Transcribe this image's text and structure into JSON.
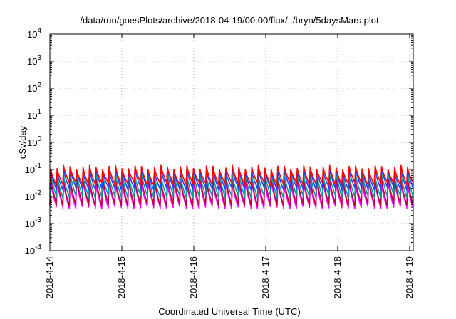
{
  "chart_data": {
    "type": "line",
    "title": "/data/run/goesPlots/archive/2018-04-19/00:00/flux/../bryn/5daysMars.plot",
    "xlabel": "Coordinated Universal Time (UTC)",
    "ylabel": "cSv/day",
    "yscale": "log",
    "ylim": [
      0.0001,
      10000
    ],
    "xlim": [
      0,
      5.05
    ],
    "grid": true,
    "x_ticks": [
      {
        "x": 0,
        "label": "2018-4-14"
      },
      {
        "x": 1,
        "label": "2018-4-15"
      },
      {
        "x": 2,
        "label": "2018-4-16"
      },
      {
        "x": 3,
        "label": "2018-4-17"
      },
      {
        "x": 4,
        "label": "2018-4-18"
      },
      {
        "x": 5,
        "label": "2018-4-19"
      }
    ],
    "y_ticks": [
      {
        "value": 0.0001,
        "base": "10",
        "exp": "-4"
      },
      {
        "value": 0.001,
        "base": "10",
        "exp": "-3"
      },
      {
        "value": 0.01,
        "base": "10",
        "exp": "-2"
      },
      {
        "value": 0.1,
        "base": "10",
        "exp": "-1"
      },
      {
        "value": 1,
        "base": "10",
        "exp": "0"
      },
      {
        "value": 10,
        "base": "10",
        "exp": "1"
      },
      {
        "value": 100,
        "base": "10",
        "exp": "2"
      },
      {
        "value": 1000,
        "base": "10",
        "exp": "3"
      },
      {
        "value": 10000,
        "base": "10",
        "exp": "4"
      }
    ],
    "cycles_per_day": 11,
    "series": [
      {
        "color": "#ff00ff",
        "peak": 0.035,
        "trough": 0.004
      },
      {
        "color": "#c00040",
        "peak": 0.05,
        "trough": 0.005
      },
      {
        "color": "#00a0a0",
        "peak": 0.07,
        "trough": 0.01
      },
      {
        "color": "#2040ff",
        "peak": 0.1,
        "trough": 0.02
      },
      {
        "color": "#ff0000",
        "peak": 0.12,
        "trough": 0.03
      }
    ]
  }
}
